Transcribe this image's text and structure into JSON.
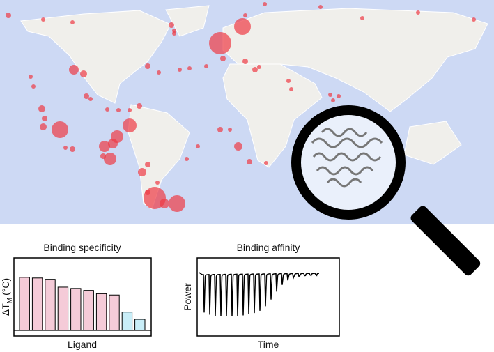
{
  "specificity_panel": {
    "type": "bar",
    "title": "Binding specificity",
    "y_label": {
      "main": "ΔT",
      "sub": "M",
      "unit": "(°C)"
    },
    "x_label": "Ligand",
    "values": [
      81,
      80,
      78,
      66,
      64,
      61,
      56,
      54,
      28,
      17
    ],
    "colors": [
      "#f5cbd8",
      "#f5cbd8",
      "#f5cbd8",
      "#f5cbd8",
      "#f5cbd8",
      "#f5cbd8",
      "#f5cbd8",
      "#f5cbd8",
      "#c9eef8",
      "#c9eef8"
    ],
    "ylim": [
      0,
      100
    ]
  },
  "affinity_panel": {
    "type": "spikes",
    "title": "Binding affinity",
    "y_label": "Power",
    "x_label": "Time",
    "values": [
      68,
      72,
      74,
      75,
      75,
      75,
      75,
      74,
      72,
      70,
      66,
      58,
      46,
      32,
      20,
      12,
      8,
      5,
      4,
      3,
      2
    ],
    "ylim": [
      0,
      100
    ]
  }
}
